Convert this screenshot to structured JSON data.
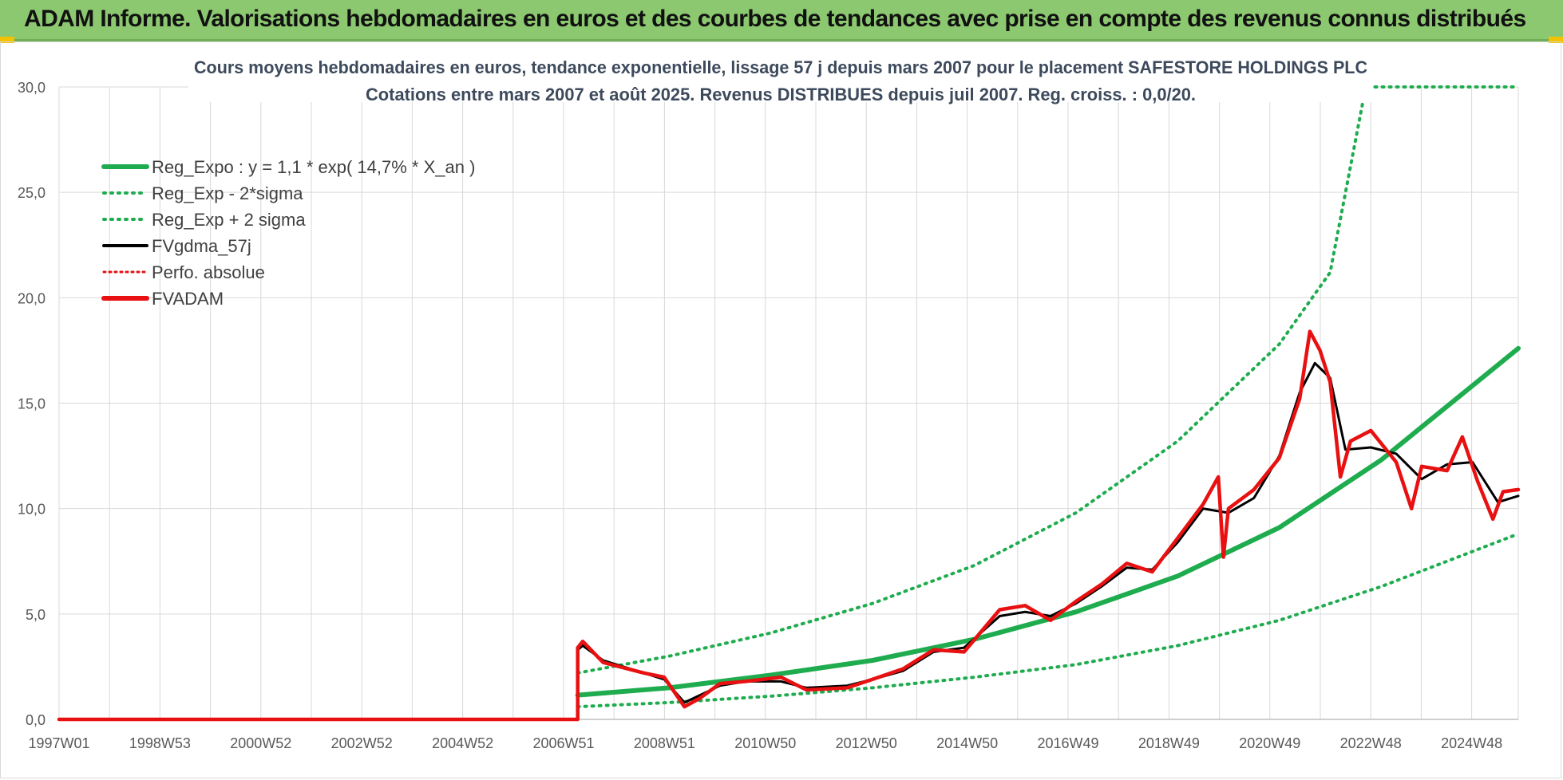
{
  "header": {
    "title": "ADAM Informe. Valorisations hebdomadaires en euros et des courbes de tendances avec prise en compte des revenus connus distribués"
  },
  "colors": {
    "header_bg": "#8cc870",
    "reg_expo": "#1fac4f",
    "fv_gdma": "#000000",
    "fv_adam": "#e81010",
    "grid": "#d9d9d9"
  },
  "chart_data": {
    "type": "line",
    "title_line1": "Cours moyens hebdomadaires en euros, tendance exponentielle, lissage 57 j depuis mars 2007 pour le placement SAFESTORE HOLDINGS PLC",
    "title_line2": "Cotations entre mars 2007 et août 2025. Revenus DISTRIBUES depuis juil 2007. Reg. croiss. : 0,0/20.",
    "xlabel": "",
    "ylabel": "",
    "x_range": [
      1997.0,
      2025.7
    ],
    "ylim": [
      0,
      30
    ],
    "y_ticks": [
      "0,0",
      "5,0",
      "10,0",
      "15,0",
      "20,0",
      "25,0",
      "30,0"
    ],
    "x_ticks": [
      "1997W01",
      "1998W53",
      "2000W52",
      "2002W52",
      "2004W52",
      "2006W51",
      "2008W51",
      "2010W50",
      "2012W50",
      "2014W50",
      "2016W49",
      "2018W49",
      "2020W49",
      "2022W48",
      "2024W48"
    ],
    "legend_position": "top-left",
    "grid": true,
    "legend": [
      {
        "label": "Reg_Expo : y = 1,1 * exp( 14,7% *  X_an )",
        "color": "#1fac4f",
        "style": "solid-thick"
      },
      {
        "label": "Reg_Exp - 2*sigma",
        "color": "#1fac4f",
        "style": "dotted"
      },
      {
        "label": "Reg_Exp + 2 sigma",
        "color": "#1fac4f",
        "style": "dotted"
      },
      {
        "label": "FVgdma_57j",
        "color": "#000000",
        "style": "solid"
      },
      {
        "label": "Perfo. absolue",
        "color": "#e81010",
        "style": "dotted"
      },
      {
        "label": "FVADAM",
        "color": "#e81010",
        "style": "solid-thick"
      }
    ],
    "series": [
      {
        "name": "Reg_Expo : y = 1,1 * exp( 14,7% *  X_an )",
        "x": [
          2007.2,
          2009.0,
          2011.0,
          2013.0,
          2015.0,
          2017.0,
          2019.0,
          2021.0,
          2023.0,
          2025.7
        ],
        "values": [
          1.15,
          1.5,
          2.1,
          2.8,
          3.8,
          5.1,
          6.8,
          9.1,
          12.3,
          17.6
        ]
      },
      {
        "name": "Reg_Exp - 2*sigma",
        "x": [
          2007.2,
          2009.0,
          2011.0,
          2013.0,
          2015.0,
          2017.0,
          2019.0,
          2021.0,
          2023.0,
          2025.7
        ],
        "values": [
          0.6,
          0.8,
          1.1,
          1.5,
          2.0,
          2.6,
          3.5,
          4.7,
          6.3,
          8.8
        ]
      },
      {
        "name": "Reg_Exp + 2 sigma",
        "x": [
          2007.2,
          2009.0,
          2011.0,
          2013.0,
          2015.0,
          2017.0,
          2019.0,
          2021.0,
          2022.0,
          2022.7,
          2025.7
        ],
        "values": [
          2.2,
          3.0,
          4.1,
          5.5,
          7.3,
          9.8,
          13.2,
          17.8,
          21.2,
          30.0,
          30.0
        ]
      },
      {
        "name": "FVgdma_57j",
        "x": [
          2007.2,
          2007.3,
          2007.7,
          2008.5,
          2008.9,
          2009.3,
          2010.0,
          2010.5,
          2011.2,
          2011.7,
          2012.5,
          2013.0,
          2013.6,
          2014.2,
          2014.8,
          2015.5,
          2016.0,
          2016.5,
          2017.0,
          2017.5,
          2018.0,
          2018.5,
          2019.0,
          2019.5,
          2020.0,
          2020.5,
          2021.0,
          2021.4,
          2021.7,
          2022.0,
          2022.3,
          2022.8,
          2023.3,
          2023.8,
          2024.3,
          2024.8,
          2025.3,
          2025.7
        ],
        "values": [
          3.3,
          3.5,
          2.8,
          2.2,
          1.9,
          0.8,
          1.6,
          1.8,
          1.8,
          1.5,
          1.6,
          1.9,
          2.3,
          3.2,
          3.4,
          4.9,
          5.1,
          4.9,
          5.5,
          6.3,
          7.2,
          7.1,
          8.4,
          10.0,
          9.8,
          10.5,
          12.5,
          15.5,
          16.9,
          16.2,
          12.8,
          12.9,
          12.6,
          11.4,
          12.1,
          12.2,
          10.3,
          10.6
        ]
      },
      {
        "name": "FVADAM",
        "x": [
          1997.0,
          2007.2,
          2007.2,
          2007.3,
          2007.7,
          2008.5,
          2008.9,
          2009.3,
          2009.6,
          2010.0,
          2010.5,
          2011.2,
          2011.7,
          2012.5,
          2013.0,
          2013.6,
          2014.2,
          2014.8,
          2015.5,
          2016.0,
          2016.5,
          2017.0,
          2017.5,
          2018.0,
          2018.5,
          2019.0,
          2019.5,
          2019.8,
          2019.9,
          2020.0,
          2020.5,
          2021.0,
          2021.4,
          2021.6,
          2021.8,
          2022.0,
          2022.2,
          2022.4,
          2022.8,
          2023.3,
          2023.6,
          2023.8,
          2024.3,
          2024.6,
          2024.9,
          2025.2,
          2025.4,
          2025.7
        ],
        "values": [
          0.0,
          0.0,
          3.4,
          3.7,
          2.7,
          2.2,
          2.0,
          0.6,
          1.0,
          1.7,
          1.8,
          2.0,
          1.4,
          1.5,
          1.9,
          2.4,
          3.3,
          3.2,
          5.2,
          5.4,
          4.7,
          5.6,
          6.4,
          7.4,
          7.0,
          8.6,
          10.2,
          11.5,
          7.7,
          10.0,
          10.9,
          12.4,
          15.2,
          18.4,
          17.5,
          16.0,
          11.5,
          13.2,
          13.7,
          12.2,
          10.0,
          12.0,
          11.8,
          13.4,
          11.3,
          9.5,
          10.8,
          10.9
        ]
      }
    ]
  }
}
